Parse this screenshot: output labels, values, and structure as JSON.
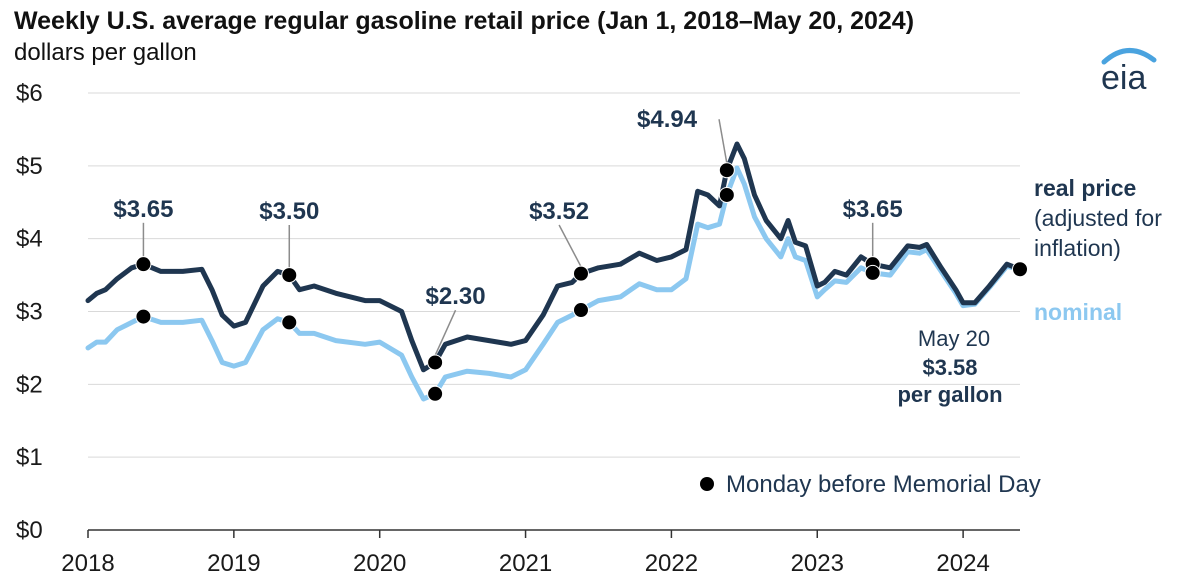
{
  "chart_data": {
    "type": "line",
    "title": "Weekly U.S. average regular gasoline retail price (Jan 1, 2018–May 20, 2024)",
    "subtitle": "dollars per gallon",
    "x_ticks": [
      2018,
      2019,
      2020,
      2021,
      2022,
      2023,
      2024
    ],
    "x_tick_labels": [
      "2018",
      "2019",
      "2020",
      "2021",
      "2022",
      "2023",
      "2024"
    ],
    "xlim": [
      2018.0,
      2024.39
    ],
    "ylim": [
      0,
      6
    ],
    "y_ticks": [
      0,
      1,
      2,
      3,
      4,
      5,
      6
    ],
    "y_tick_labels": [
      "$0",
      "$1",
      "$2",
      "$3",
      "$4",
      "$5",
      "$6"
    ],
    "grid": "horizontal",
    "series": [
      {
        "name": "real price",
        "label_lines": [
          "real price",
          "(adjusted for",
          "inflation)"
        ],
        "color": "#1f3650",
        "points": [
          [
            2018.0,
            3.15
          ],
          [
            2018.06,
            3.25
          ],
          [
            2018.12,
            3.3
          ],
          [
            2018.2,
            3.45
          ],
          [
            2018.3,
            3.6
          ],
          [
            2018.38,
            3.65
          ],
          [
            2018.5,
            3.55
          ],
          [
            2018.65,
            3.55
          ],
          [
            2018.78,
            3.58
          ],
          [
            2018.85,
            3.3
          ],
          [
            2018.92,
            2.95
          ],
          [
            2019.0,
            2.8
          ],
          [
            2019.08,
            2.85
          ],
          [
            2019.2,
            3.35
          ],
          [
            2019.3,
            3.55
          ],
          [
            2019.38,
            3.5
          ],
          [
            2019.45,
            3.3
          ],
          [
            2019.55,
            3.35
          ],
          [
            2019.7,
            3.25
          ],
          [
            2019.9,
            3.15
          ],
          [
            2020.0,
            3.15
          ],
          [
            2020.15,
            3.0
          ],
          [
            2020.22,
            2.6
          ],
          [
            2020.3,
            2.2
          ],
          [
            2020.38,
            2.3
          ],
          [
            2020.45,
            2.55
          ],
          [
            2020.6,
            2.65
          ],
          [
            2020.75,
            2.6
          ],
          [
            2020.9,
            2.55
          ],
          [
            2021.0,
            2.6
          ],
          [
            2021.12,
            2.95
          ],
          [
            2021.22,
            3.35
          ],
          [
            2021.32,
            3.4
          ],
          [
            2021.38,
            3.52
          ],
          [
            2021.5,
            3.6
          ],
          [
            2021.65,
            3.65
          ],
          [
            2021.78,
            3.8
          ],
          [
            2021.9,
            3.7
          ],
          [
            2022.0,
            3.75
          ],
          [
            2022.1,
            3.85
          ],
          [
            2022.18,
            4.65
          ],
          [
            2022.25,
            4.6
          ],
          [
            2022.33,
            4.45
          ],
          [
            2022.38,
            4.94
          ],
          [
            2022.45,
            5.3
          ],
          [
            2022.5,
            5.1
          ],
          [
            2022.57,
            4.6
          ],
          [
            2022.65,
            4.25
          ],
          [
            2022.75,
            4.0
          ],
          [
            2022.8,
            4.25
          ],
          [
            2022.85,
            3.95
          ],
          [
            2022.92,
            3.9
          ],
          [
            2023.0,
            3.35
          ],
          [
            2023.05,
            3.4
          ],
          [
            2023.12,
            3.55
          ],
          [
            2023.2,
            3.5
          ],
          [
            2023.3,
            3.75
          ],
          [
            2023.38,
            3.65
          ],
          [
            2023.5,
            3.6
          ],
          [
            2023.62,
            3.9
          ],
          [
            2023.7,
            3.88
          ],
          [
            2023.75,
            3.92
          ],
          [
            2023.85,
            3.6
          ],
          [
            2023.95,
            3.3
          ],
          [
            2024.0,
            3.12
          ],
          [
            2024.08,
            3.12
          ],
          [
            2024.18,
            3.35
          ],
          [
            2024.3,
            3.65
          ],
          [
            2024.39,
            3.58
          ]
        ]
      },
      {
        "name": "nominal",
        "label_lines": [
          "nominal"
        ],
        "color": "#8cc8f0",
        "points": [
          [
            2018.0,
            2.5
          ],
          [
            2018.06,
            2.58
          ],
          [
            2018.12,
            2.58
          ],
          [
            2018.2,
            2.75
          ],
          [
            2018.3,
            2.85
          ],
          [
            2018.38,
            2.93
          ],
          [
            2018.5,
            2.85
          ],
          [
            2018.65,
            2.85
          ],
          [
            2018.78,
            2.88
          ],
          [
            2018.85,
            2.6
          ],
          [
            2018.92,
            2.3
          ],
          [
            2019.0,
            2.25
          ],
          [
            2019.08,
            2.3
          ],
          [
            2019.2,
            2.75
          ],
          [
            2019.3,
            2.9
          ],
          [
            2019.38,
            2.85
          ],
          [
            2019.45,
            2.7
          ],
          [
            2019.55,
            2.7
          ],
          [
            2019.7,
            2.6
          ],
          [
            2019.9,
            2.55
          ],
          [
            2020.0,
            2.58
          ],
          [
            2020.15,
            2.4
          ],
          [
            2020.22,
            2.1
          ],
          [
            2020.3,
            1.8
          ],
          [
            2020.38,
            1.87
          ],
          [
            2020.45,
            2.1
          ],
          [
            2020.6,
            2.18
          ],
          [
            2020.75,
            2.15
          ],
          [
            2020.9,
            2.1
          ],
          [
            2021.0,
            2.2
          ],
          [
            2021.12,
            2.55
          ],
          [
            2021.22,
            2.85
          ],
          [
            2021.32,
            2.95
          ],
          [
            2021.38,
            3.02
          ],
          [
            2021.5,
            3.15
          ],
          [
            2021.65,
            3.2
          ],
          [
            2021.78,
            3.38
          ],
          [
            2021.9,
            3.3
          ],
          [
            2022.0,
            3.3
          ],
          [
            2022.1,
            3.45
          ],
          [
            2022.18,
            4.2
          ],
          [
            2022.25,
            4.15
          ],
          [
            2022.33,
            4.2
          ],
          [
            2022.38,
            4.6
          ],
          [
            2022.45,
            4.97
          ],
          [
            2022.5,
            4.75
          ],
          [
            2022.57,
            4.3
          ],
          [
            2022.65,
            4.0
          ],
          [
            2022.75,
            3.75
          ],
          [
            2022.8,
            4.0
          ],
          [
            2022.85,
            3.75
          ],
          [
            2022.92,
            3.7
          ],
          [
            2023.0,
            3.2
          ],
          [
            2023.05,
            3.3
          ],
          [
            2023.12,
            3.42
          ],
          [
            2023.2,
            3.4
          ],
          [
            2023.3,
            3.6
          ],
          [
            2023.38,
            3.53
          ],
          [
            2023.5,
            3.5
          ],
          [
            2023.62,
            3.82
          ],
          [
            2023.7,
            3.8
          ],
          [
            2023.75,
            3.85
          ],
          [
            2023.85,
            3.55
          ],
          [
            2023.95,
            3.25
          ],
          [
            2024.0,
            3.08
          ],
          [
            2024.08,
            3.1
          ],
          [
            2024.18,
            3.33
          ],
          [
            2024.3,
            3.62
          ],
          [
            2024.39,
            3.58
          ]
        ]
      }
    ],
    "markers": [
      {
        "x": 2018.38,
        "real": 3.65,
        "nominal": 2.93,
        "label": "$3.65",
        "label_x": 2018.38,
        "label_y": 4.3
      },
      {
        "x": 2019.38,
        "real": 3.5,
        "nominal": 2.85,
        "label": "$3.50",
        "label_x": 2019.38,
        "label_y": 4.27
      },
      {
        "x": 2020.38,
        "real": 2.3,
        "nominal": 1.87,
        "label": "$2.30",
        "label_x": 2020.52,
        "label_y": 3.1
      },
      {
        "x": 2021.38,
        "real": 3.52,
        "nominal": 3.02,
        "label": "$3.52",
        "label_x": 2021.23,
        "label_y": 4.27
      },
      {
        "x": 2022.38,
        "real": 4.94,
        "nominal": 4.6,
        "label": "$4.94",
        "label_x": 2021.97,
        "label_y": 5.53
      },
      {
        "x": 2023.38,
        "real": 3.65,
        "nominal": 3.53,
        "label": "$3.65",
        "label_x": 2023.38,
        "label_y": 4.3
      }
    ],
    "latest": {
      "x": 2024.39,
      "value": 3.58,
      "lines": [
        "May 20",
        "$3.58",
        "per gallon"
      ]
    },
    "legend": {
      "label": "Monday before Memorial Day",
      "placement": "bottom-right"
    }
  },
  "brand": {
    "logo_text": "eia"
  },
  "colors": {
    "real": "#1f3650",
    "nominal": "#8cc8f0",
    "grid": "#d9d9d9",
    "marker": "#000000"
  }
}
